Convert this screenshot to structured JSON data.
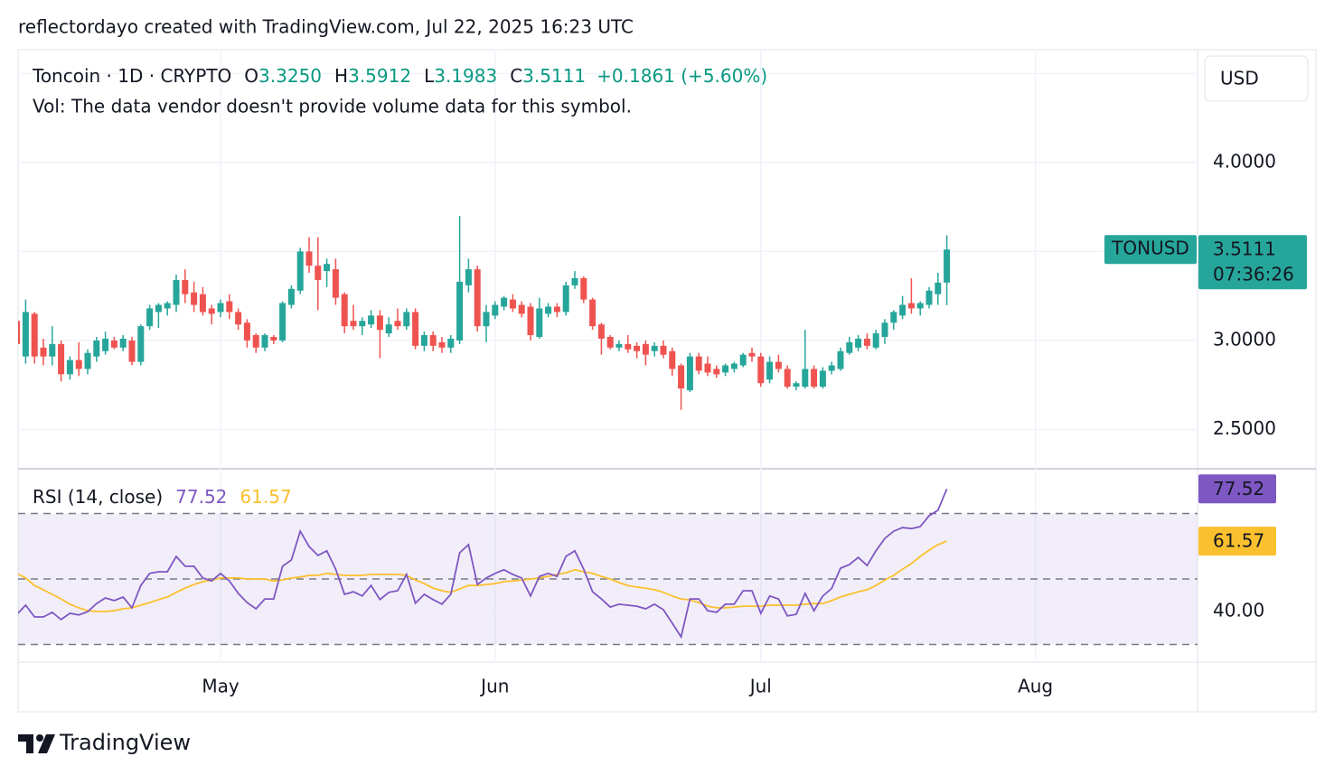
{
  "header": {
    "attribution": "reflectordayo created with TradingView.com, Jul 22, 2025 16:23 UTC"
  },
  "chart_data": [
    {
      "type": "candlestick",
      "legend": {
        "symbol": "Toncoin · 1D · CRYPTO",
        "o": "O",
        "open": "3.3250",
        "h": "H",
        "l": "L",
        "c": "C",
        "change": "+0.1861 (+5.60%)"
      },
      "note": "Vol: The data vendor doesn't provide volume data for this symbol.",
      "currency": "USD",
      "symbol_tag": "TONUSD",
      "countdown": "07:36:26",
      "up_color": "#26a69a",
      "down_color": "#ef5350",
      "grid": true,
      "categories": [
        null,
        null,
        null,
        null,
        null,
        null,
        null,
        null,
        null,
        null,
        null,
        null,
        null,
        null,
        null,
        null,
        null,
        null,
        null,
        null,
        null,
        null,
        null,
        "May",
        null,
        null,
        null,
        null,
        null,
        null,
        null,
        null,
        null,
        null,
        null,
        null,
        null,
        null,
        null,
        null,
        null,
        null,
        null,
        null,
        null,
        null,
        null,
        null,
        null,
        null,
        null,
        null,
        null,
        null,
        "Jun",
        null,
        null,
        null,
        null,
        null,
        null,
        null,
        null,
        null,
        null,
        null,
        null,
        null,
        null,
        null,
        null,
        null,
        null,
        null,
        null,
        null,
        null,
        null,
        null,
        null,
        null,
        null,
        null,
        null,
        "Jul",
        null,
        null,
        null,
        null,
        null,
        null,
        null,
        null,
        null,
        null,
        null,
        null,
        null,
        null,
        null,
        null,
        null,
        null,
        null,
        null,
        null,
        null,
        null,
        null,
        null,
        null,
        null,
        null,
        null,
        null,
        "Aug"
      ],
      "open": [
        3.11,
        2.91,
        3.15,
        2.96,
        2.91,
        2.98,
        2.81,
        2.89,
        2.84,
        2.91,
        2.94,
        3.0,
        2.96,
        3.0,
        2.88,
        3.08,
        3.16,
        3.18,
        3.2,
        3.34,
        3.27,
        3.26,
        3.18,
        3.16,
        3.22,
        3.16,
        3.1,
        3.03,
        2.96,
        3.02,
        3.0,
        3.2,
        3.28,
        3.5,
        3.42,
        3.39,
        3.4,
        3.26,
        3.11,
        3.08,
        3.09,
        3.14,
        3.04,
        3.11,
        3.08,
        3.16,
        2.97,
        3.03,
        2.99,
        2.96,
        3.0,
        3.31,
        3.4,
        3.08,
        3.14,
        3.19,
        3.23,
        3.2,
        3.19,
        3.02,
        3.15,
        3.19,
        3.16,
        3.31,
        3.35,
        3.23,
        3.09,
        3.02,
        2.96,
        2.98,
        2.97,
        2.98,
        2.94,
        2.97,
        2.94,
        2.86,
        2.72,
        2.91,
        2.87,
        2.84,
        2.82,
        2.84,
        2.86,
        2.93,
        2.91,
        2.78,
        2.88,
        2.84,
        2.74,
        2.74,
        2.84,
        2.74,
        2.83,
        2.84,
        2.93,
        2.96,
        3.01,
        2.96,
        3.02,
        3.1,
        3.14,
        3.21,
        3.18,
        3.2,
        3.26,
        3.325,
        null,
        null,
        null,
        null,
        null,
        null,
        null,
        null,
        null,
        null
      ],
      "high": [
        3.13,
        3.23,
        3.16,
        3.01,
        3.08,
        3.0,
        2.91,
        2.99,
        2.95,
        3.02,
        3.05,
        3.02,
        3.03,
        3.02,
        3.09,
        3.2,
        3.21,
        3.22,
        3.37,
        3.4,
        3.33,
        3.3,
        3.2,
        3.23,
        3.26,
        3.18,
        3.12,
        3.04,
        3.04,
        3.03,
        3.22,
        3.31,
        3.52,
        3.58,
        3.58,
        3.46,
        3.46,
        3.27,
        3.2,
        3.13,
        3.17,
        3.17,
        3.13,
        3.18,
        3.18,
        3.18,
        3.05,
        3.05,
        3.02,
        3.03,
        3.7,
        3.46,
        3.42,
        3.2,
        3.22,
        3.25,
        3.26,
        3.22,
        3.21,
        3.24,
        3.21,
        3.21,
        3.33,
        3.39,
        3.36,
        3.24,
        3.1,
        3.03,
        3.0,
        3.03,
        2.99,
        3.0,
        2.99,
        3.0,
        2.96,
        2.87,
        2.93,
        2.93,
        2.91,
        2.86,
        2.87,
        2.88,
        2.93,
        2.96,
        2.93,
        2.91,
        2.92,
        2.86,
        2.77,
        3.06,
        2.86,
        2.85,
        2.88,
        2.96,
        3.02,
        3.03,
        3.04,
        3.06,
        3.12,
        3.17,
        3.25,
        3.35,
        3.22,
        3.3,
        3.38,
        3.5912,
        null,
        null,
        null,
        null,
        null,
        null,
        null,
        null,
        null,
        null
      ],
      "low": [
        2.97,
        2.87,
        2.87,
        2.86,
        2.86,
        2.77,
        2.78,
        2.8,
        2.81,
        2.88,
        2.92,
        2.95,
        2.94,
        2.86,
        2.86,
        3.06,
        3.07,
        3.14,
        3.16,
        3.21,
        3.16,
        3.14,
        3.09,
        3.13,
        3.12,
        3.06,
        2.96,
        2.93,
        2.94,
        2.98,
        2.99,
        3.18,
        3.26,
        3.38,
        3.17,
        3.3,
        3.2,
        3.04,
        3.06,
        3.03,
        3.07,
        2.9,
        3.02,
        3.06,
        3.06,
        2.95,
        2.94,
        2.94,
        2.93,
        2.93,
        2.98,
        3.27,
        3.05,
        2.99,
        3.12,
        3.17,
        3.16,
        3.13,
        3.0,
        3.01,
        3.13,
        3.13,
        3.14,
        3.29,
        3.21,
        3.06,
        2.92,
        2.95,
        2.94,
        2.93,
        2.9,
        2.86,
        2.91,
        2.9,
        2.8,
        2.61,
        2.71,
        2.81,
        2.8,
        2.79,
        2.8,
        2.82,
        2.85,
        2.88,
        2.74,
        2.76,
        2.82,
        2.73,
        2.72,
        2.73,
        2.73,
        2.73,
        2.81,
        2.83,
        2.92,
        2.94,
        2.95,
        2.95,
        2.98,
        3.06,
        3.12,
        3.15,
        3.14,
        3.18,
        3.2,
        3.1983,
        null,
        null,
        null,
        null,
        null,
        null,
        null,
        null,
        null,
        null
      ],
      "close": [
        2.98,
        3.16,
        2.91,
        2.91,
        2.98,
        2.81,
        2.89,
        2.84,
        2.93,
        3.0,
        3.01,
        2.96,
        3.01,
        2.88,
        3.08,
        3.18,
        3.2,
        3.21,
        3.34,
        3.26,
        3.2,
        3.16,
        3.15,
        3.21,
        3.16,
        3.09,
        3.0,
        2.96,
        3.03,
        3.0,
        3.21,
        3.29,
        3.5,
        3.42,
        3.34,
        3.43,
        3.24,
        3.08,
        3.08,
        3.11,
        3.14,
        3.06,
        3.09,
        3.08,
        3.16,
        2.97,
        3.03,
        2.97,
        2.96,
        3.01,
        3.33,
        3.4,
        3.08,
        3.16,
        3.2,
        3.24,
        3.18,
        3.15,
        3.03,
        3.18,
        3.19,
        3.16,
        3.31,
        3.35,
        3.23,
        3.08,
        3.01,
        2.96,
        2.98,
        2.95,
        2.94,
        2.92,
        2.97,
        2.92,
        2.84,
        2.73,
        2.91,
        2.83,
        2.82,
        2.81,
        2.86,
        2.87,
        2.92,
        2.91,
        2.76,
        2.88,
        2.84,
        2.74,
        2.76,
        2.84,
        2.74,
        2.83,
        2.86,
        2.94,
        2.99,
        3.01,
        2.97,
        3.04,
        3.1,
        3.16,
        3.2,
        3.18,
        3.21,
        3.28,
        3.325,
        3.5111,
        null,
        null,
        null,
        null,
        null,
        null,
        null,
        null,
        null,
        null
      ],
      "ylim": [
        2.284,
        4.634
      ],
      "yticks": [
        {
          "value": 2.5,
          "label": "2.5000"
        },
        {
          "value": 3,
          "label": "3.0000"
        },
        {
          "value": 3.5,
          "label": null
        },
        {
          "value": 4,
          "label": "4.0000"
        },
        {
          "value": 4.5,
          "label": null
        }
      ]
    },
    {
      "type": "line",
      "title": "RSI (14, close)",
      "grid": true,
      "series": [
        {
          "color": "#7e57c2",
          "values": [
            39.2,
            42,
            38.4,
            38.4,
            39.8,
            37.6,
            39.5,
            39,
            40,
            42.5,
            44.2,
            43.4,
            44.5,
            41.2,
            48,
            51.7,
            52.2,
            52.2,
            56.9,
            53.9,
            53.9,
            50.3,
            49.4,
            51.7,
            49.4,
            45.6,
            42.8,
            40.9,
            43.9,
            43.9,
            53.9,
            55.8,
            64.6,
            59.9,
            57.2,
            58.6,
            53,
            45.3,
            46.1,
            44.8,
            48,
            43.7,
            45.9,
            46.4,
            51.4,
            42.6,
            45.3,
            43.7,
            42.3,
            45.3,
            58,
            60.5,
            48.3,
            50.3,
            51.7,
            52.8,
            51.4,
            50.3,
            44.8,
            50.8,
            51.7,
            50.8,
            56.9,
            58.6,
            53,
            46.1,
            43.9,
            41.4,
            42.3,
            42,
            41.7,
            40.9,
            42.3,
            40.6,
            36.5,
            32.3,
            43.9,
            43.9,
            40.3,
            39.8,
            42.3,
            42.3,
            46.4,
            46.4,
            39.5,
            44.8,
            43.9,
            38.7,
            39.2,
            45.6,
            40.3,
            44.8,
            47.1,
            53.3,
            54.4,
            56.6,
            54.1,
            58.6,
            62.4,
            64.6,
            65.7,
            65.4,
            66,
            69.3,
            71,
            77.52
          ]
        },
        {
          "color": "#fbc02d",
          "values": [
            51.7,
            50.3,
            48,
            46.7,
            45.3,
            43.9,
            42.3,
            41.2,
            40.3,
            40.1,
            40.1,
            40.3,
            40.9,
            41.2,
            42,
            42.8,
            43.7,
            44.5,
            45.9,
            47.2,
            48.3,
            49.2,
            49.7,
            50.3,
            50.3,
            50.3,
            50,
            50,
            50,
            49.4,
            49.7,
            50.3,
            50.6,
            51.1,
            51.1,
            51.7,
            51.4,
            51.1,
            51.1,
            51.1,
            51.4,
            51.4,
            51.4,
            51.4,
            51.1,
            49.7,
            48.6,
            47.2,
            46.4,
            45.9,
            47,
            48,
            48,
            48.3,
            48.6,
            49.2,
            49.4,
            49.7,
            50,
            50.3,
            50.8,
            51.4,
            51.9,
            52.8,
            52.2,
            51.7,
            50.8,
            50,
            48.9,
            48,
            47.5,
            47.2,
            46.7,
            45.9,
            44.8,
            43.9,
            43.6,
            42.8,
            41.7,
            41.2,
            41.2,
            41.4,
            41.7,
            41.7,
            41.7,
            42,
            42,
            42,
            42,
            42.3,
            42.5,
            42.5,
            43.4,
            44.5,
            45.3,
            46.1,
            46.7,
            48,
            49.7,
            51.1,
            53,
            54.7,
            56.9,
            58.8,
            60.5,
            61.57
          ]
        }
      ],
      "levels": [
        70,
        50,
        30
      ],
      "ylim": [
        24.6,
        83.4
      ],
      "yticks": [
        {
          "value": 40,
          "label": "40.00"
        }
      ]
    }
  ],
  "footer": {
    "brand": "TradingView"
  }
}
